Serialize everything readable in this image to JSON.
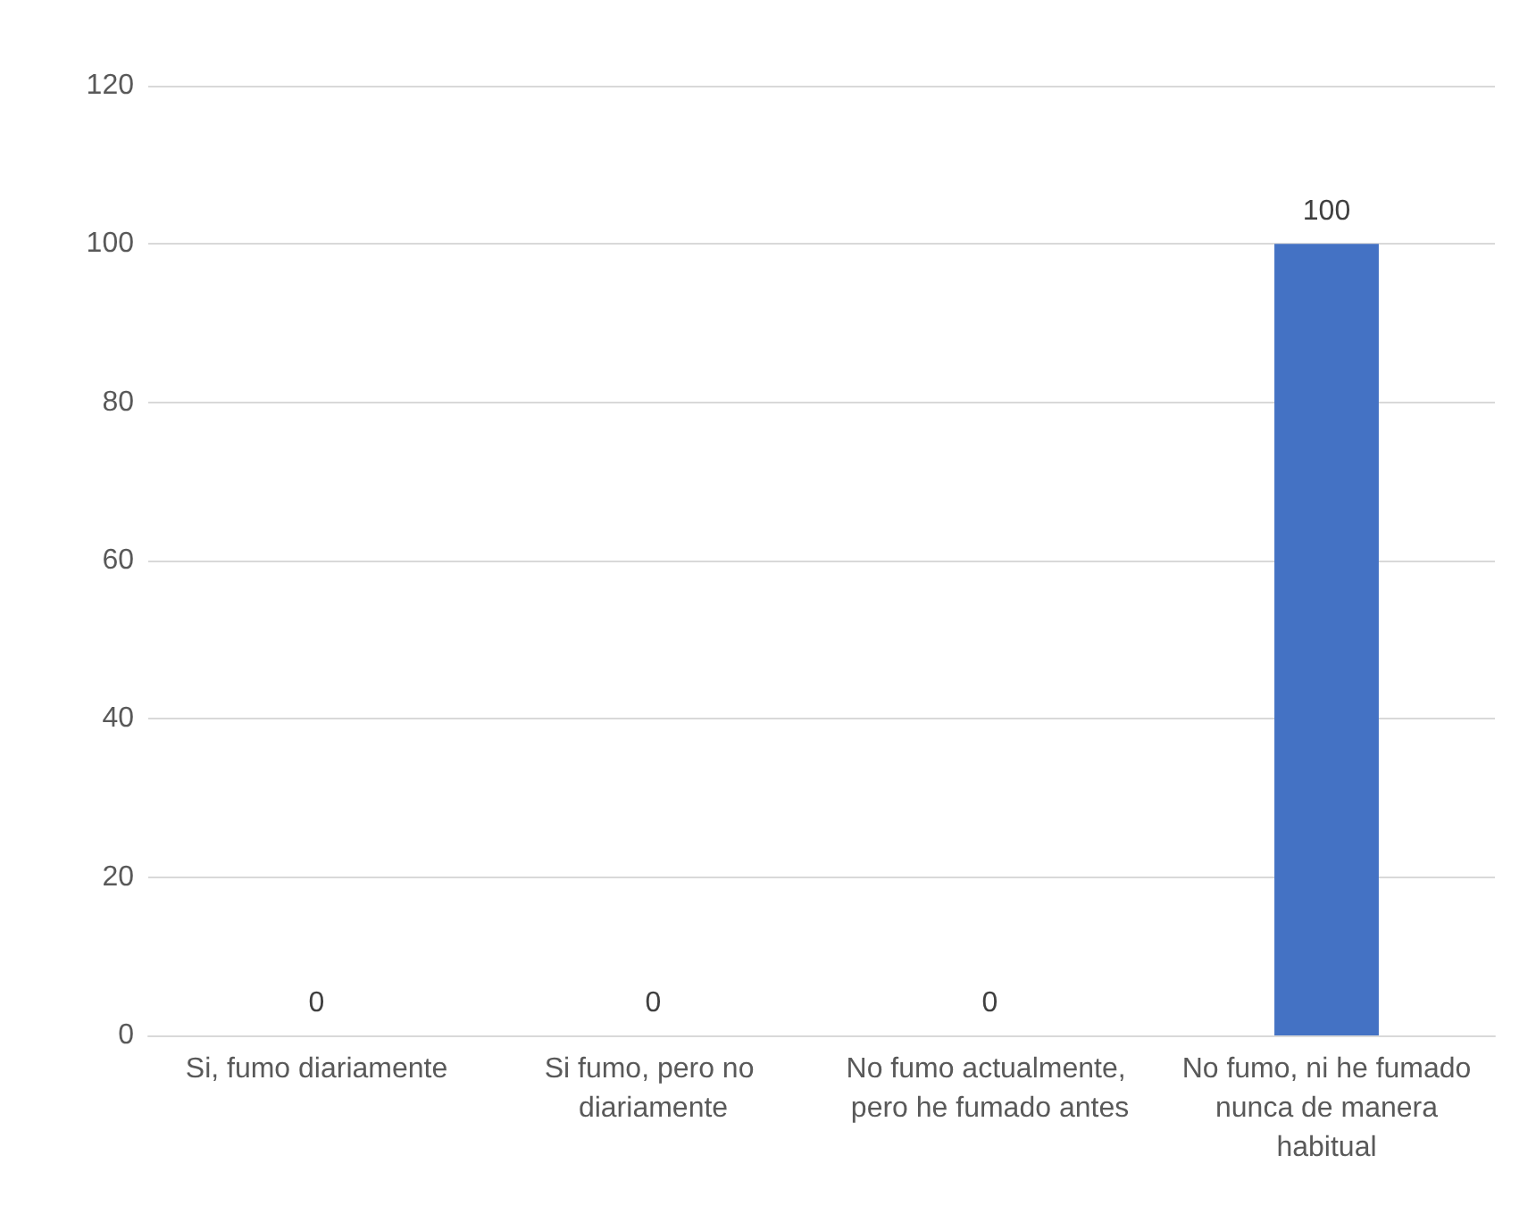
{
  "chart_data": {
    "type": "bar",
    "categories": [
      "Si, fumo diariamente",
      "Si fumo, pero no diariamente",
      "No fumo actualmente, pero he fumado antes",
      "No fumo, ni he fumado nunca de manera habitual"
    ],
    "values": [
      0,
      0,
      0,
      100
    ],
    "color": "#4472c4",
    "ylim": [
      0,
      120
    ],
    "yticks": [
      0,
      20,
      40,
      60,
      80,
      100,
      120
    ],
    "grid": "y",
    "data_labels": true
  }
}
